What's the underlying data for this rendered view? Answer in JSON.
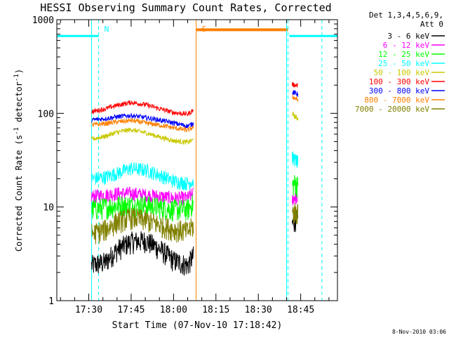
{
  "chart_data": {
    "type": "line",
    "title": "HESSI Observing Summary Count Rates, Corrected",
    "xlabel": "Start Time (07-Nov-10 17:18:42)",
    "ylabel_main": "Corrected Count Rate (s",
    "ylabel_sup1": "-1",
    "ylabel_mid": " detector",
    "ylabel_sup2": "-1",
    "ylabel_end": ")",
    "yscale": "log",
    "ylim": [
      1,
      1000
    ],
    "xlim": [
      "17:18:42",
      "18:58:00"
    ],
    "x_ticks": [
      "17:30",
      "17:45",
      "18:00",
      "18:15",
      "18:30",
      "18:45"
    ],
    "y_ticks": [
      "1",
      "10",
      "100",
      "1000"
    ],
    "legend_title_1": "Det 1,3,4,5,6,9,",
    "legend_title_2": "Att 0",
    "date_stamp": "8-Nov-2010 03:06",
    "annotations": [
      {
        "label": "N",
        "x": "17:33:30",
        "color": "#00ffff"
      },
      {
        "label": "S",
        "x": "18:08:00",
        "color": "#ff8000"
      }
    ],
    "night_periods": [
      {
        "start": "17:18:42",
        "end": "17:33:30",
        "y": 670
      },
      {
        "start": "18:41:00",
        "end": "18:58:00",
        "y": 670
      }
    ],
    "saa_periods": [
      {
        "start": "18:08:00",
        "end": "18:40:30",
        "y": 780
      }
    ],
    "markers": [
      {
        "x": "17:31:00",
        "color": "#00ffff",
        "style": "solid"
      },
      {
        "x": "17:33:30",
        "color": "#00ffff",
        "style": "dashed"
      },
      {
        "x": "18:08:00",
        "color": "#ff8000",
        "style": "solid"
      },
      {
        "x": "18:40:00",
        "color": "#00ffff",
        "style": "solid"
      },
      {
        "x": "18:40:30",
        "color": "#00ffff",
        "style": "dashed"
      },
      {
        "x": "18:52:30",
        "color": "#00ffff",
        "style": "dashed"
      }
    ],
    "series": [
      {
        "name": "3 - 6 keV",
        "color": "#000000",
        "x": [
          "17:31",
          "17:36",
          "17:40",
          "17:45",
          "17:50",
          "17:55",
          "18:00",
          "18:05",
          "18:07"
        ],
        "values": [
          2.4,
          2.6,
          3.5,
          4.3,
          4.4,
          3.6,
          2.7,
          2.4,
          3.0
        ],
        "x2": [
          "18:42",
          "18:43",
          "18:44"
        ],
        "values2": [
          6.5,
          7.5,
          7.0
        ]
      },
      {
        "name": "6 - 12 keV",
        "color": "#ff00ff",
        "x": [
          "17:31",
          "17:36",
          "17:40",
          "17:45",
          "17:50",
          "17:55",
          "18:00",
          "18:05",
          "18:07"
        ],
        "values": [
          13,
          13.5,
          14,
          14,
          13.5,
          13,
          12.5,
          12.5,
          14
        ],
        "x2": [
          "18:42",
          "18:43",
          "18:44"
        ],
        "values2": [
          12,
          13,
          12
        ]
      },
      {
        "name": "12 - 25 keV",
        "color": "#00ff00",
        "x": [
          "17:31",
          "17:36",
          "17:40",
          "17:45",
          "17:50",
          "17:55",
          "18:00",
          "18:05",
          "18:07"
        ],
        "values": [
          9.5,
          10,
          10.5,
          10.5,
          10.5,
          10,
          9.5,
          9.5,
          11
        ],
        "x2": [
          "18:42",
          "18:43",
          "18:44"
        ],
        "values2": [
          17,
          18,
          17
        ]
      },
      {
        "name": "25 - 50 keV",
        "color": "#00ffff",
        "x": [
          "17:31",
          "17:36",
          "17:40",
          "17:45",
          "17:50",
          "17:55",
          "18:00",
          "18:05",
          "18:07"
        ],
        "values": [
          20,
          21,
          23,
          26,
          25,
          22,
          19,
          18,
          19
        ],
        "x2": [
          "18:42",
          "18:43",
          "18:44"
        ],
        "values2": [
          34,
          32,
          30
        ]
      },
      {
        "name": "50 - 100 keV",
        "color": "#c8c800",
        "x": [
          "17:31",
          "17:36",
          "17:40",
          "17:45",
          "17:50",
          "17:55",
          "18:00",
          "18:05",
          "18:07"
        ],
        "values": [
          53,
          57,
          63,
          67,
          62,
          56,
          51,
          49,
          52
        ],
        "x2": [
          "18:42",
          "18:43",
          "18:44"
        ],
        "values2": [
          100,
          92,
          88
        ]
      },
      {
        "name": "100 - 300 keV",
        "color": "#ff0000",
        "x": [
          "17:31",
          "17:36",
          "17:40",
          "17:45",
          "17:50",
          "17:55",
          "18:00",
          "18:05",
          "18:07"
        ],
        "values": [
          104,
          112,
          122,
          131,
          124,
          112,
          102,
          98,
          108
        ],
        "x2": [
          "18:42",
          "18:43",
          "18:44"
        ],
        "values2": [
          205,
          200,
          198
        ]
      },
      {
        "name": "300 - 800 keV",
        "color": "#0000ff",
        "x": [
          "17:31",
          "17:36",
          "17:40",
          "17:45",
          "17:50",
          "17:55",
          "18:00",
          "18:05",
          "18:07"
        ],
        "values": [
          85,
          88,
          92,
          95,
          90,
          85,
          79,
          73,
          78
        ],
        "x2": [
          "18:42",
          "18:43",
          "18:44"
        ],
        "values2": [
          170,
          165,
          160
        ]
      },
      {
        "name": "800 - 7000 keV",
        "color": "#ff8000",
        "x": [
          "17:31",
          "17:36",
          "17:40",
          "17:45",
          "17:50",
          "17:55",
          "18:00",
          "18:05",
          "18:07"
        ],
        "values": [
          75,
          78,
          81,
          84,
          79,
          75,
          70,
          66,
          71
        ],
        "x2": [
          "18:42",
          "18:43",
          "18:44"
        ],
        "values2": [
          150,
          145,
          140
        ]
      },
      {
        "name": "7000 - 20000 keV",
        "color": "#808000",
        "x": [
          "17:31",
          "17:36",
          "17:40",
          "17:45",
          "17:50",
          "17:55",
          "18:00",
          "18:05",
          "18:07"
        ],
        "values": [
          5.2,
          5.8,
          7.0,
          7.8,
          7.3,
          6.5,
          5.8,
          5.5,
          6.3
        ],
        "x2": [
          "18:42",
          "18:43",
          "18:44"
        ],
        "values2": [
          8.5,
          9.0,
          8.5
        ]
      }
    ]
  }
}
